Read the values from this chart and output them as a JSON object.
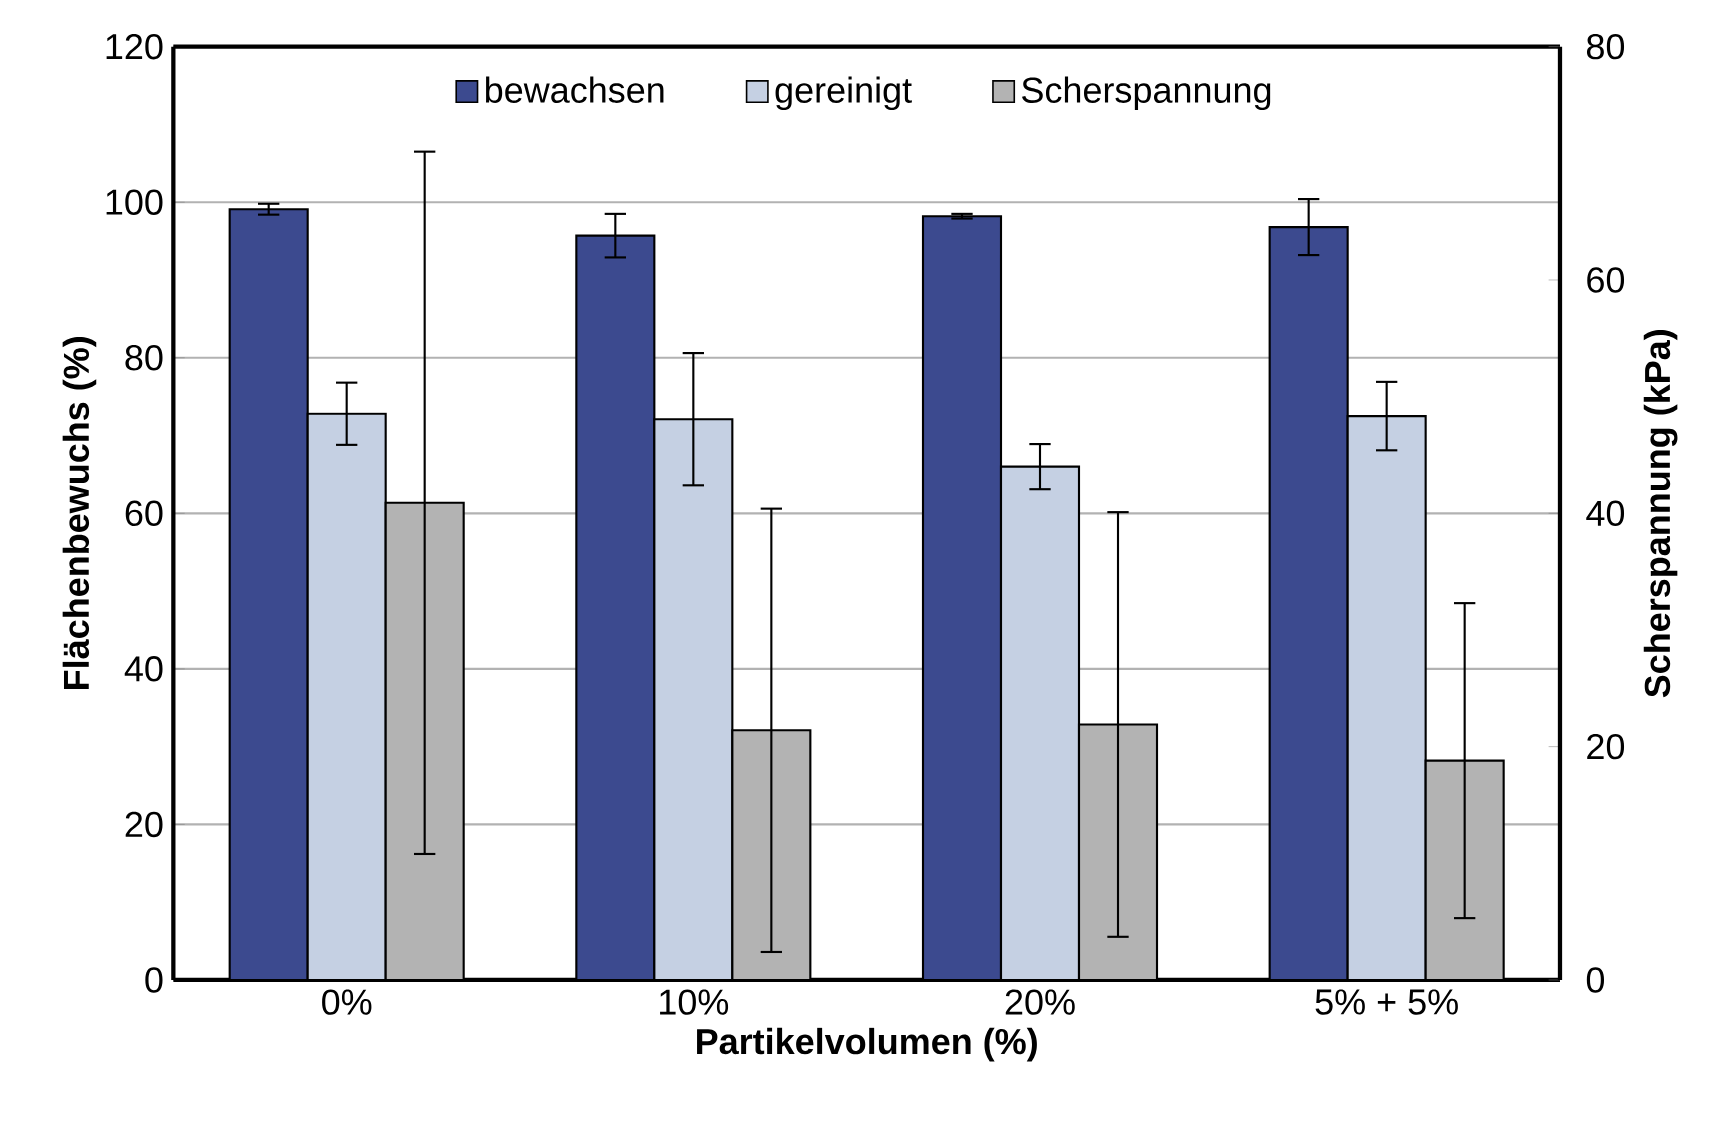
{
  "chart_data": {
    "type": "bar",
    "xlabel": "Partikelvolumen (%)",
    "ylabel": "Flächenbewuchs (%)",
    "y2label": "Scherspannung (kPa)",
    "categories": [
      "0%",
      "10%",
      "20%",
      "5% + 5%"
    ],
    "series": [
      {
        "name": "bewachsen",
        "color": "#3c4a8f",
        "values": [
          99.1,
          95.7,
          98.2,
          96.8
        ],
        "errors": [
          0.7,
          2.8,
          0.3,
          3.6
        ]
      },
      {
        "name": "gereinigt",
        "color": "#c5d0e3",
        "values": [
          72.8,
          72.1,
          66.0,
          72.5
        ],
        "errors": [
          4.0,
          8.5,
          2.9,
          4.4
        ]
      },
      {
        "name": "Scherspannung",
        "color": "#b3b3b3",
        "axis": "y2",
        "values": [
          40.9,
          21.4,
          21.9,
          18.8
        ],
        "errors": [
          30.1,
          19.0,
          18.2,
          13.5
        ]
      }
    ],
    "ylim": [
      0,
      120
    ],
    "yticks": [
      0,
      20,
      40,
      60,
      80,
      100,
      120
    ],
    "y2lim": [
      0,
      80
    ],
    "y2ticks": [
      0,
      20,
      40,
      60,
      80
    ],
    "grid": "y",
    "legend": "top"
  }
}
